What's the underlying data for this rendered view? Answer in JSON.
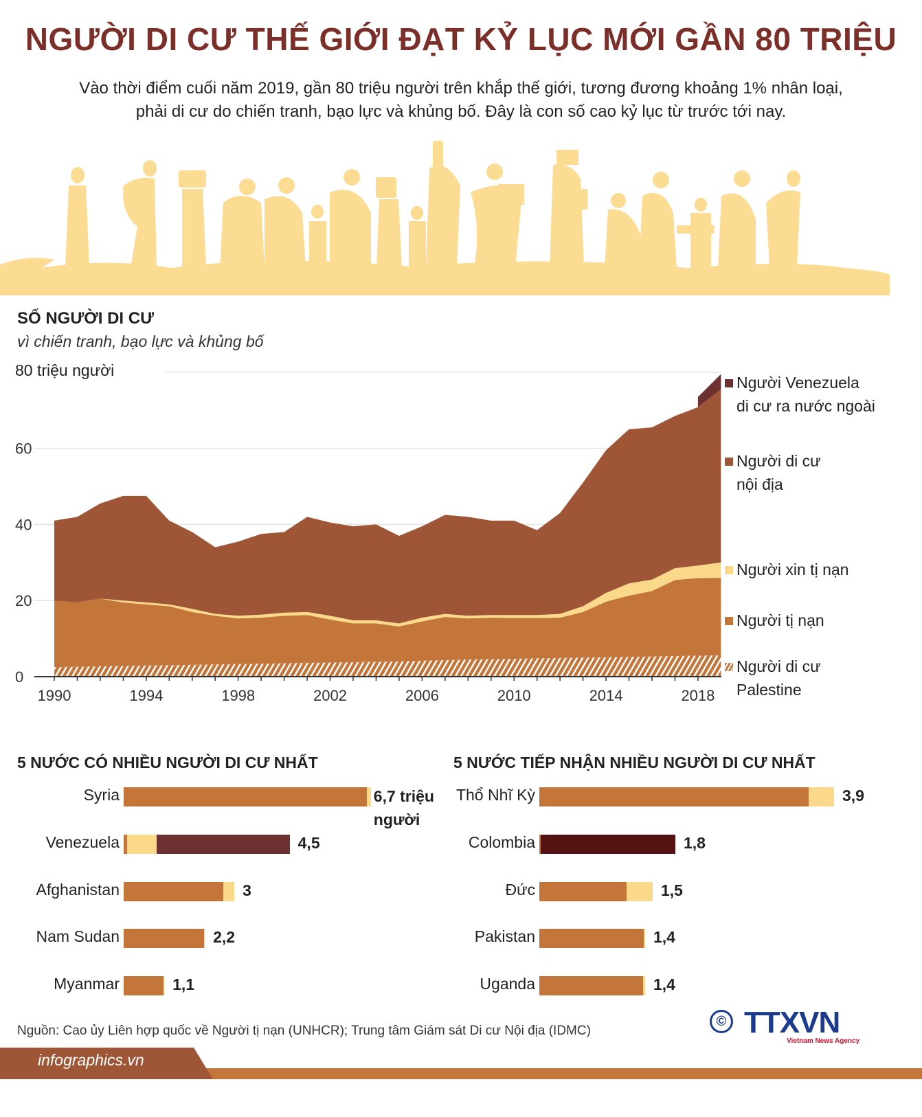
{
  "header": {
    "title": "NGƯỜI DI CƯ THẾ GIỚI ĐẠT KỶ LỤC MỚI GẦN 80 TRIỆU",
    "subtitle": [
      "Vào thời điểm cuối năm 2019, gần 80 triệu người trên khắp thế giới, tương đương khoảng 1% nhân loại,",
      "phải di cư do chiến tranh, bạo lực và khủng bố. Đây là con số cao kỷ lục từ trước tới nay."
    ]
  },
  "colors": {
    "title": "#7b2f28",
    "idp": "#9e5636",
    "refugees": "#c4753a",
    "asylum": "#fbd98a",
    "venezuela": "#6e3131",
    "colombia": "#561212",
    "band": "#fcdc92"
  },
  "chart_data": [
    {
      "type": "area",
      "title": "SỐ NGƯỜI DI CƯ",
      "subtitle": "vì chiến tranh, bạo lực và khủng bố",
      "ylabel": "80 triệu người",
      "ylim": [
        0,
        80
      ],
      "yticks": [
        "0",
        "20",
        "40",
        "60"
      ],
      "xticks": [
        "1990",
        "1994",
        "1998",
        "2002",
        "2006",
        "2010",
        "2014",
        "2018"
      ],
      "x": [
        1990,
        1991,
        1992,
        1993,
        1994,
        1995,
        1996,
        1997,
        1998,
        1999,
        2000,
        2001,
        2002,
        2003,
        2004,
        2005,
        2006,
        2007,
        2008,
        2009,
        2010,
        2011,
        2012,
        2013,
        2014,
        2015,
        2016,
        2017,
        2018,
        2019
      ],
      "series": [
        {
          "name": "Người di cư Palestine",
          "key": "palestine",
          "values": [
            2.5,
            2.6,
            2.7,
            2.8,
            2.9,
            3,
            3.1,
            3.2,
            3.3,
            3.4,
            3.5,
            3.6,
            3.7,
            3.8,
            3.9,
            4,
            4.2,
            4.3,
            4.5,
            4.6,
            4.7,
            4.8,
            4.9,
            5,
            5.1,
            5.2,
            5.3,
            5.4,
            5.5,
            5.6
          ]
        },
        {
          "name": "Người tị nạn",
          "key": "refugees",
          "values": [
            17.5,
            16.9,
            17.8,
            16.7,
            16.1,
            15.5,
            13.9,
            12.8,
            12,
            12.1,
            12.5,
            12.6,
            11.3,
            10.2,
            10.1,
            9.2,
            10.3,
            11.4,
            10.8,
            10.9,
            10.7,
            10.6,
            10.6,
            12,
            14.6,
            16.1,
            17.2,
            20,
            20.4,
            20.4
          ]
        },
        {
          "name": "Người xin tị nạn",
          "key": "asylum",
          "values": [
            0,
            0,
            0,
            0.5,
            0.5,
            0.5,
            0.8,
            0.5,
            0.7,
            0.8,
            0.8,
            0.8,
            1,
            0.8,
            0.8,
            0.8,
            1,
            0.8,
            0.7,
            0.7,
            0.8,
            0.8,
            1,
            1.5,
            2.3,
            3.2,
            3,
            3.1,
            3.3,
            4
          ]
        },
        {
          "name": "Người di cư nội địa",
          "key": "idp",
          "values": [
            21,
            22.5,
            25,
            27.5,
            28,
            22,
            20.2,
            17.5,
            19.5,
            21.2,
            21.2,
            25,
            24.5,
            24.7,
            25.2,
            23,
            24,
            26,
            26,
            24.8,
            24.8,
            22.3,
            26.5,
            32.5,
            37.5,
            40.5,
            40,
            40,
            41.6,
            45.5
          ]
        },
        {
          "name": "Người Venezuela di cư ra nước ngoài",
          "key": "venezuela",
          "values": [
            0,
            0,
            0,
            0,
            0,
            0,
            0,
            0,
            0,
            0,
            0,
            0,
            0,
            0,
            0,
            0,
            0,
            0,
            0,
            0,
            0,
            0,
            0,
            0,
            0,
            0,
            0,
            0,
            2.7,
            4
          ]
        }
      ],
      "legend": [
        {
          "key": "venezuela",
          "label": [
            "Người Venezuela",
            "di cư ra nước ngoài"
          ]
        },
        {
          "key": "idp",
          "label": [
            "Người di cư",
            "nội địa"
          ]
        },
        {
          "key": "asylum",
          "label": [
            "Người xin tị nạn"
          ]
        },
        {
          "key": "refugees",
          "label": [
            "Người tị nạn"
          ]
        },
        {
          "key": "palestine",
          "label": [
            "Người di cư",
            "Palestine"
          ]
        }
      ],
      "legend_placement": "right"
    },
    {
      "type": "bar",
      "title": "5 NƯỚC CÓ NHIỀU NGƯỜI DI CƯ NHẤT",
      "unit": "triệu người",
      "categories": [
        "Syria",
        "Venezuela",
        "Afghanistan",
        "Nam Sudan",
        "Myanmar"
      ],
      "labels": [
        "6,7 triệu người",
        "4,5",
        "3",
        "2,2",
        "1,1"
      ],
      "totals": [
        6.7,
        4.5,
        3,
        2.2,
        1.1
      ],
      "segments": [
        [
          6.6,
          0.1,
          0
        ],
        [
          0.1,
          0.8,
          3.6
        ],
        [
          2.7,
          0.3,
          0
        ],
        [
          2.18,
          0.02,
          0
        ],
        [
          1.08,
          0.02,
          0
        ]
      ]
    },
    {
      "type": "bar",
      "title": "5 NƯỚC TIẾP NHẬN NHIỀU NGƯỜI DI CƯ NHẤT",
      "categories": [
        "Thổ Nhĩ Kỳ",
        "Colombia",
        "Đức",
        "Pakistan",
        "Uganda"
      ],
      "labels": [
        "3,9",
        "1,8",
        "1,5",
        "1,4",
        "1,4"
      ],
      "totals": [
        3.9,
        1.8,
        1.5,
        1.4,
        1.4
      ],
      "segments": [
        [
          3.56,
          0.34,
          0
        ],
        [
          0.02,
          0,
          1.78
        ],
        [
          1.15,
          0.35,
          0
        ],
        [
          1.38,
          0.02,
          0
        ],
        [
          1.37,
          0.03,
          0
        ]
      ]
    }
  ],
  "footer": {
    "source": "Nguồn: Cao ủy Liên hợp quốc về Người tị nạn (UNHCR); Trung tâm Giám sát Di cư Nội địa (IDMC)",
    "site": "infographics.vn",
    "logo": "TTXVN",
    "logo_sub": "Vietnam News Agency",
    "copyright": "©"
  }
}
